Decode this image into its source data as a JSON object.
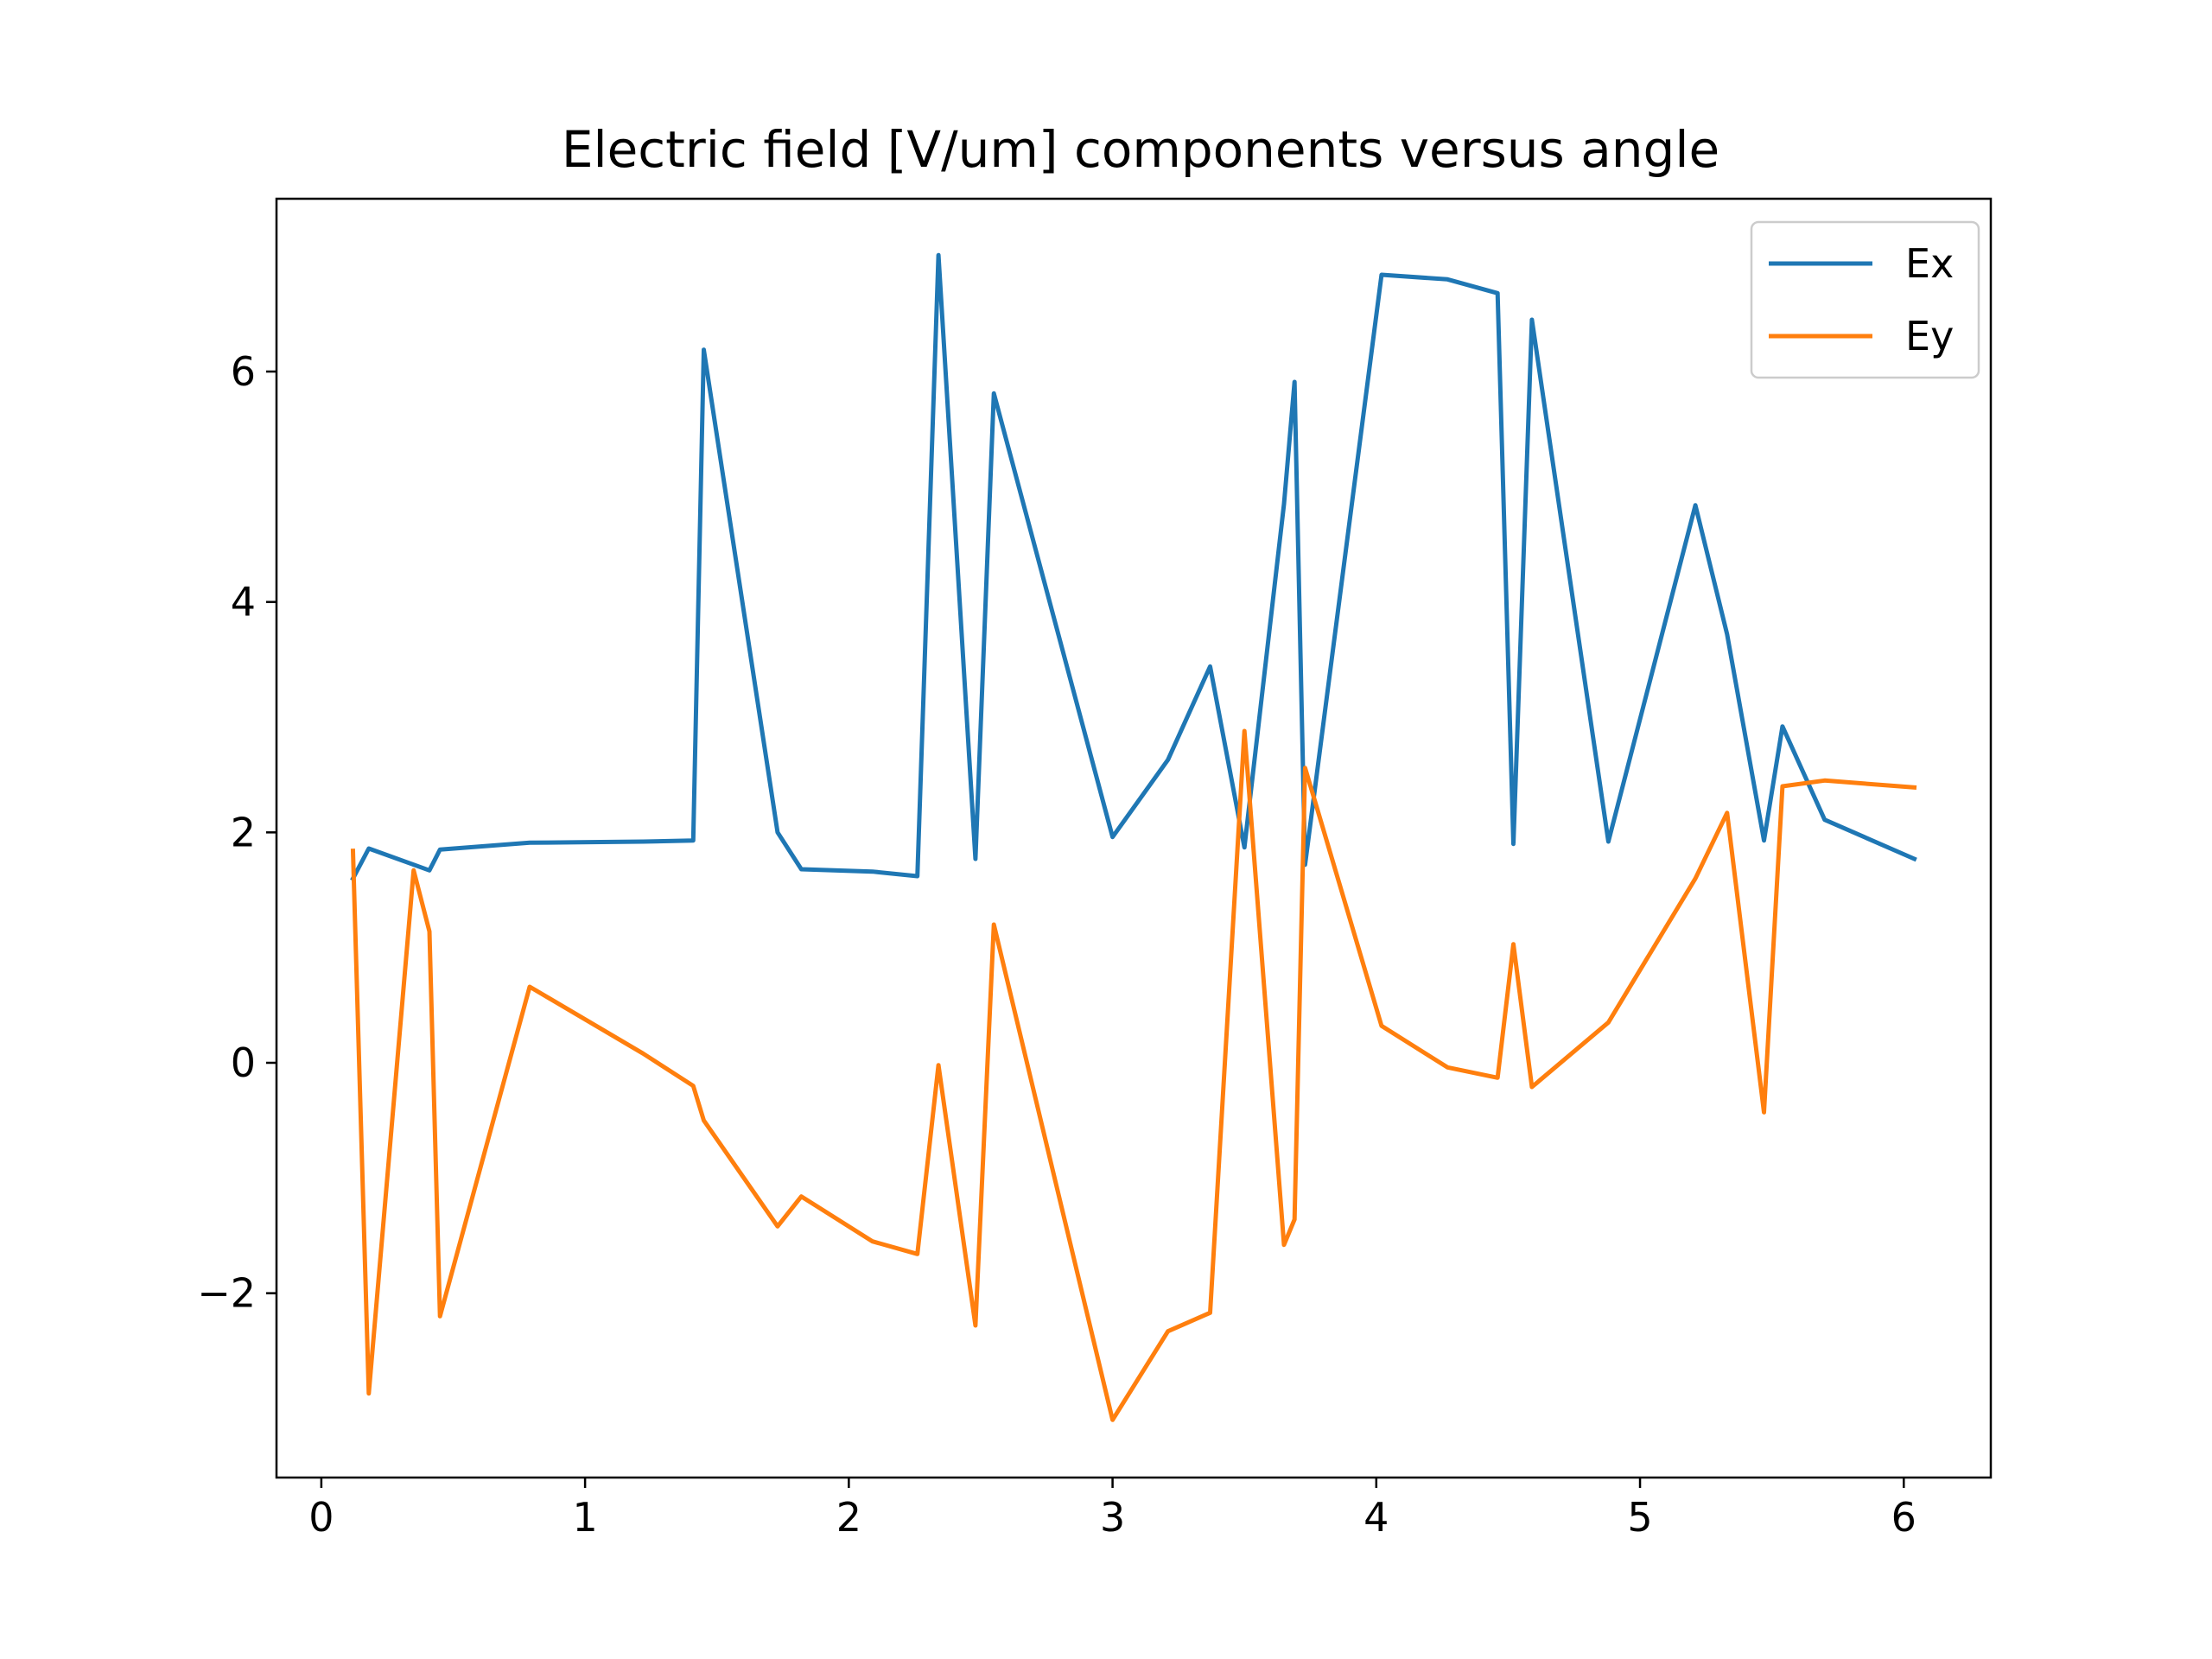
{
  "chart_data": {
    "type": "line",
    "title": "Electric field [V/um] components versus angle",
    "xlabel": "",
    "ylabel": "",
    "xlim": [
      -0.17,
      6.33
    ],
    "ylim": [
      -3.6,
      7.5
    ],
    "xticks": [
      0,
      1,
      2,
      3,
      4,
      5,
      6
    ],
    "yticks": [
      -2,
      0,
      2,
      4,
      6
    ],
    "xtick_labels": [
      "0",
      "1",
      "2",
      "3",
      "4",
      "5",
      "6"
    ],
    "ytick_labels": [
      "−2",
      "0",
      "2",
      "4",
      "6"
    ],
    "grid": false,
    "legend": {
      "position": "top-right"
    },
    "x": [
      0.12,
      0.18,
      0.35,
      0.41,
      0.45,
      0.79,
      1.22,
      1.41,
      1.45,
      1.73,
      1.82,
      2.09,
      2.26,
      2.34,
      2.48,
      2.55,
      3.0,
      3.21,
      3.37,
      3.5,
      3.65,
      3.69,
      3.73,
      4.02,
      4.27,
      4.46,
      4.52,
      4.59,
      4.88,
      5.21,
      5.33,
      5.47,
      5.54,
      5.7,
      6.04
    ],
    "series": [
      {
        "name": "Ex",
        "color": "#1f77b4",
        "values": [
          1.6,
          1.86,
          1.72,
          1.67,
          1.85,
          1.91,
          1.92,
          1.93,
          6.19,
          2.0,
          1.68,
          1.66,
          1.62,
          7.01,
          1.77,
          5.81,
          1.96,
          2.63,
          3.44,
          1.87,
          4.85,
          5.91,
          1.72,
          6.84,
          6.8,
          6.68,
          1.9,
          6.45,
          1.92,
          4.84,
          3.72,
          1.93,
          2.92,
          2.11,
          1.77
        ]
      },
      {
        "name": "Ey",
        "color": "#ff7f0e",
        "values": [
          1.84,
          -2.87,
          1.67,
          1.14,
          -2.2,
          0.66,
          0.08,
          -0.2,
          -0.5,
          -1.42,
          -1.16,
          -1.55,
          -1.66,
          -0.02,
          -2.28,
          1.2,
          -3.1,
          -2.33,
          -2.17,
          2.88,
          -1.58,
          -1.36,
          2.56,
          0.32,
          -0.04,
          -0.13,
          1.03,
          -0.21,
          0.35,
          1.6,
          2.17,
          -0.43,
          2.4,
          2.45,
          2.39
        ]
      }
    ]
  }
}
